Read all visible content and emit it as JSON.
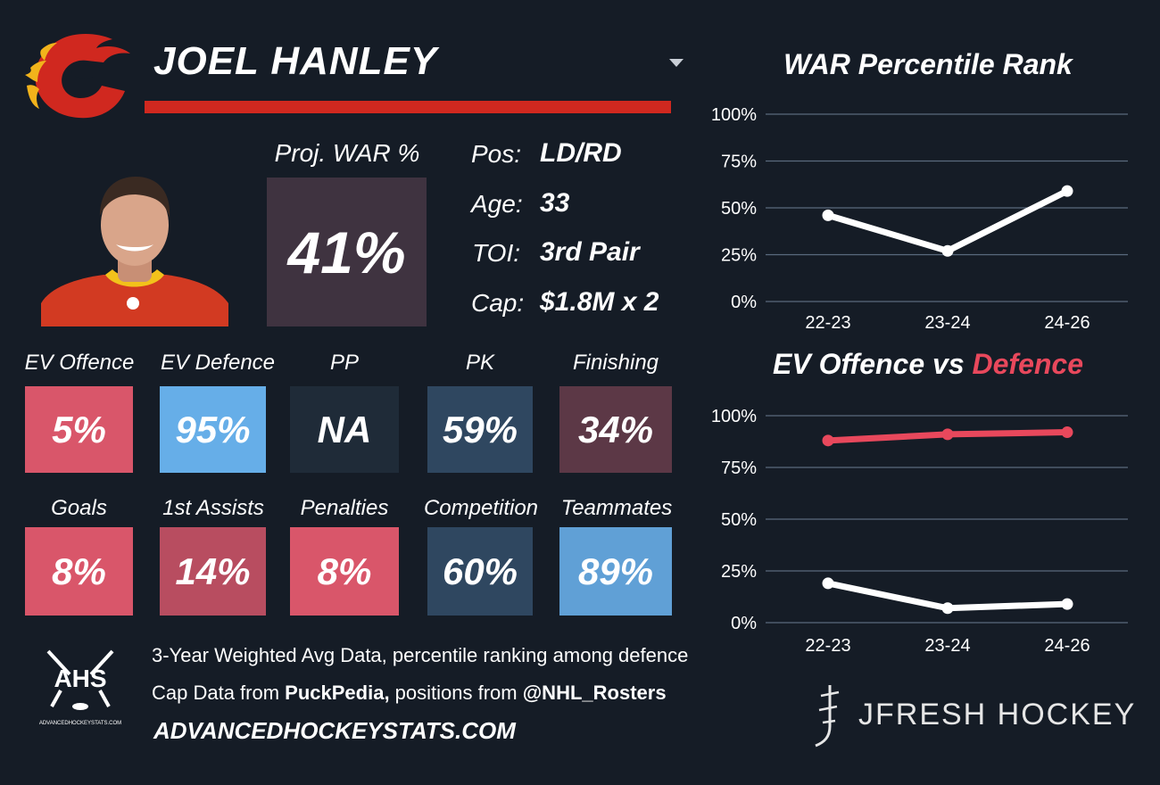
{
  "header": {
    "player_name": "JOEL HANLEY"
  },
  "projection": {
    "label": "Proj. WAR %",
    "value": "41%"
  },
  "info": [
    {
      "label": "Pos:",
      "value": "LD/RD"
    },
    {
      "label": "Age:",
      "value": "33"
    },
    {
      "label": "TOI:",
      "value": "3rd Pair"
    },
    {
      "label": "Cap:",
      "value": "$1.8M x 2"
    }
  ],
  "tiles_row1": [
    {
      "label": "EV Offence",
      "value": "5%",
      "color": "#d9566a"
    },
    {
      "label": "EV Defence",
      "value": "95%",
      "color": "#66aee8"
    },
    {
      "label": "PP",
      "value": "NA",
      "color": "#1f2b38"
    },
    {
      "label": "PK",
      "value": "59%",
      "color": "#2f4760"
    },
    {
      "label": "Finishing",
      "value": "34%",
      "color": "#5c3846"
    }
  ],
  "tiles_row2": [
    {
      "label": "Goals",
      "value": "8%",
      "color": "#d9566a"
    },
    {
      "label": "1st Assists",
      "value": "14%",
      "color": "#b84d60"
    },
    {
      "label": "Penalties",
      "value": "8%",
      "color": "#d9566a"
    },
    {
      "label": "Competition",
      "value": "60%",
      "color": "#2f4760"
    },
    {
      "label": "Teammates",
      "value": "89%",
      "color": "#60a0d6"
    }
  ],
  "footer": {
    "line1": "3-Year Weighted Avg Data, percentile ranking among defence",
    "line2_prefix": "Cap Data from ",
    "line2_bold1": "PuckPedia,",
    "line2_mid": " positions from ",
    "line2_bold2": "@NHL_Rosters",
    "site": "ADVANCEDHOCKEYSTATS.COM",
    "ahs_logo": "AHS",
    "ahs_sub": "ADVANCEDHOCKEYSTATS.COM",
    "brand": "JFRESH HOCKEY"
  },
  "colors": {
    "accent_red": "#d0281f",
    "offence_line": "#ffffff",
    "defence_line": "#e8485c"
  },
  "chart_data": [
    {
      "type": "line",
      "title": "WAR Percentile Rank",
      "x": [
        "22-23",
        "23-24",
        "24-26"
      ],
      "yticks": [
        "0%",
        "25%",
        "50%",
        "75%",
        "100%"
      ],
      "ylim": [
        0,
        100
      ],
      "series": [
        {
          "values": [
            46,
            27,
            59
          ],
          "color": "#ffffff"
        }
      ]
    },
    {
      "type": "line",
      "title_part1": "EV Offence vs ",
      "title_part2": "Defence",
      "x": [
        "22-23",
        "23-24",
        "24-26"
      ],
      "yticks": [
        "0%",
        "25%",
        "50%",
        "75%",
        "100%"
      ],
      "ylim": [
        0,
        100
      ],
      "series": [
        {
          "values": [
            19,
            7,
            9
          ],
          "color": "#ffffff"
        },
        {
          "values": [
            88,
            91,
            92
          ],
          "color": "#e8485c"
        }
      ]
    }
  ]
}
